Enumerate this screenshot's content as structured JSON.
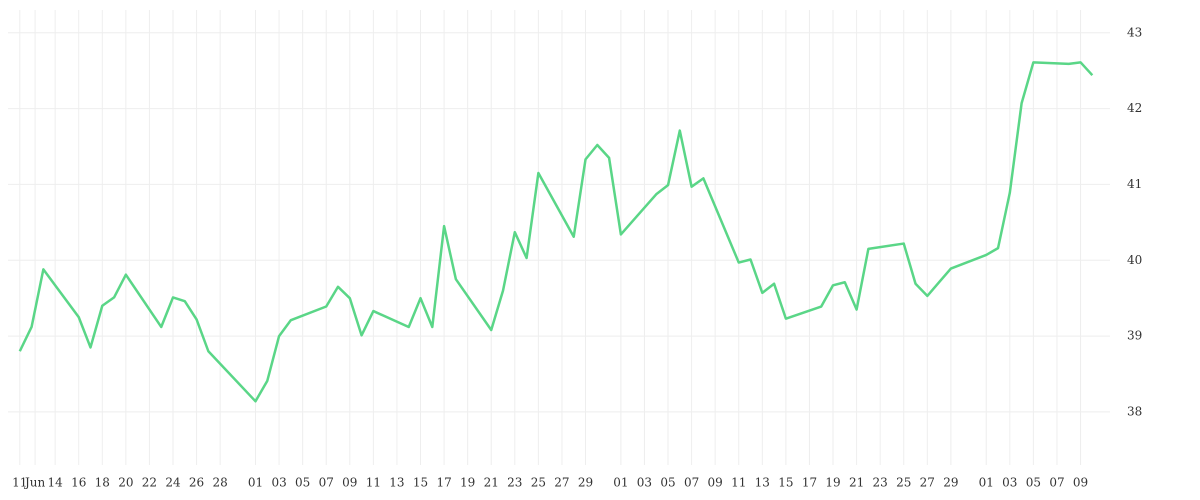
{
  "chart_data": {
    "type": "line",
    "x": [
      0,
      1,
      2,
      5,
      6,
      7,
      8,
      9,
      12,
      13,
      14,
      15,
      16,
      20,
      21,
      22,
      23,
      26,
      27,
      28,
      29,
      30,
      33,
      34,
      35,
      36,
      37,
      40,
      41,
      42,
      43,
      44,
      47,
      48,
      49,
      50,
      51,
      54,
      55,
      56,
      57,
      58,
      61,
      62,
      63,
      64,
      65,
      68,
      69,
      70,
      71,
      72,
      75,
      76,
      77,
      78,
      79,
      82,
      83,
      84,
      85,
      86,
      89,
      90,
      91
    ],
    "series": [
      {
        "color": "#5ad687",
        "values": [
          38.8,
          39.12,
          39.88,
          39.25,
          38.85,
          39.4,
          39.51,
          39.81,
          39.12,
          39.51,
          39.46,
          39.22,
          38.8,
          38.14,
          38.41,
          39.0,
          39.21,
          39.39,
          39.65,
          39.5,
          39.01,
          39.33,
          39.12,
          39.5,
          39.12,
          40.45,
          39.75,
          39.08,
          39.6,
          40.37,
          40.03,
          41.15,
          40.31,
          41.33,
          41.52,
          41.35,
          40.34,
          40.87,
          40.99,
          41.71,
          40.97,
          41.08,
          39.97,
          40.01,
          39.57,
          39.69,
          39.23,
          39.39,
          39.67,
          39.71,
          39.35,
          40.15,
          40.22,
          39.69,
          39.53,
          39.71,
          39.89,
          40.07,
          40.16,
          40.89,
          42.07,
          42.61,
          42.59,
          42.61,
          42.44
        ]
      }
    ],
    "xlim": [
      -1,
      92.5
    ],
    "xticks": [
      {
        "value": 0,
        "label": "11"
      },
      {
        "value": 1.3,
        "label": "Jun"
      },
      {
        "value": 3,
        "label": "14"
      },
      {
        "value": 5,
        "label": "16"
      },
      {
        "value": 7,
        "label": "18"
      },
      {
        "value": 9,
        "label": "20"
      },
      {
        "value": 11,
        "label": "22"
      },
      {
        "value": 13,
        "label": "24"
      },
      {
        "value": 15,
        "label": "26"
      },
      {
        "value": 17,
        "label": "28"
      },
      {
        "value": 20,
        "label": "01"
      },
      {
        "value": 22,
        "label": "03"
      },
      {
        "value": 24,
        "label": "05"
      },
      {
        "value": 26,
        "label": "07"
      },
      {
        "value": 28,
        "label": "09"
      },
      {
        "value": 30,
        "label": "11"
      },
      {
        "value": 32,
        "label": "13"
      },
      {
        "value": 34,
        "label": "15"
      },
      {
        "value": 36,
        "label": "17"
      },
      {
        "value": 38,
        "label": "19"
      },
      {
        "value": 40,
        "label": "21"
      },
      {
        "value": 42,
        "label": "23"
      },
      {
        "value": 44,
        "label": "25"
      },
      {
        "value": 46,
        "label": "27"
      },
      {
        "value": 48,
        "label": "29"
      },
      {
        "value": 51,
        "label": "01"
      },
      {
        "value": 53,
        "label": "03"
      },
      {
        "value": 55,
        "label": "05"
      },
      {
        "value": 57,
        "label": "07"
      },
      {
        "value": 59,
        "label": "09"
      },
      {
        "value": 61,
        "label": "11"
      },
      {
        "value": 63,
        "label": "13"
      },
      {
        "value": 65,
        "label": "15"
      },
      {
        "value": 67,
        "label": "17"
      },
      {
        "value": 69,
        "label": "19"
      },
      {
        "value": 71,
        "label": "21"
      },
      {
        "value": 73,
        "label": "23"
      },
      {
        "value": 75,
        "label": "25"
      },
      {
        "value": 77,
        "label": "27"
      },
      {
        "value": 79,
        "label": "29"
      },
      {
        "value": 82,
        "label": "01"
      },
      {
        "value": 84,
        "label": "03"
      },
      {
        "value": 86,
        "label": "05"
      },
      {
        "value": 88,
        "label": "07"
      },
      {
        "value": 90,
        "label": "09"
      }
    ],
    "ylim": [
      37.3,
      43.3
    ],
    "yticks": [
      38,
      39,
      40,
      41,
      42,
      43
    ],
    "grid": true
  }
}
